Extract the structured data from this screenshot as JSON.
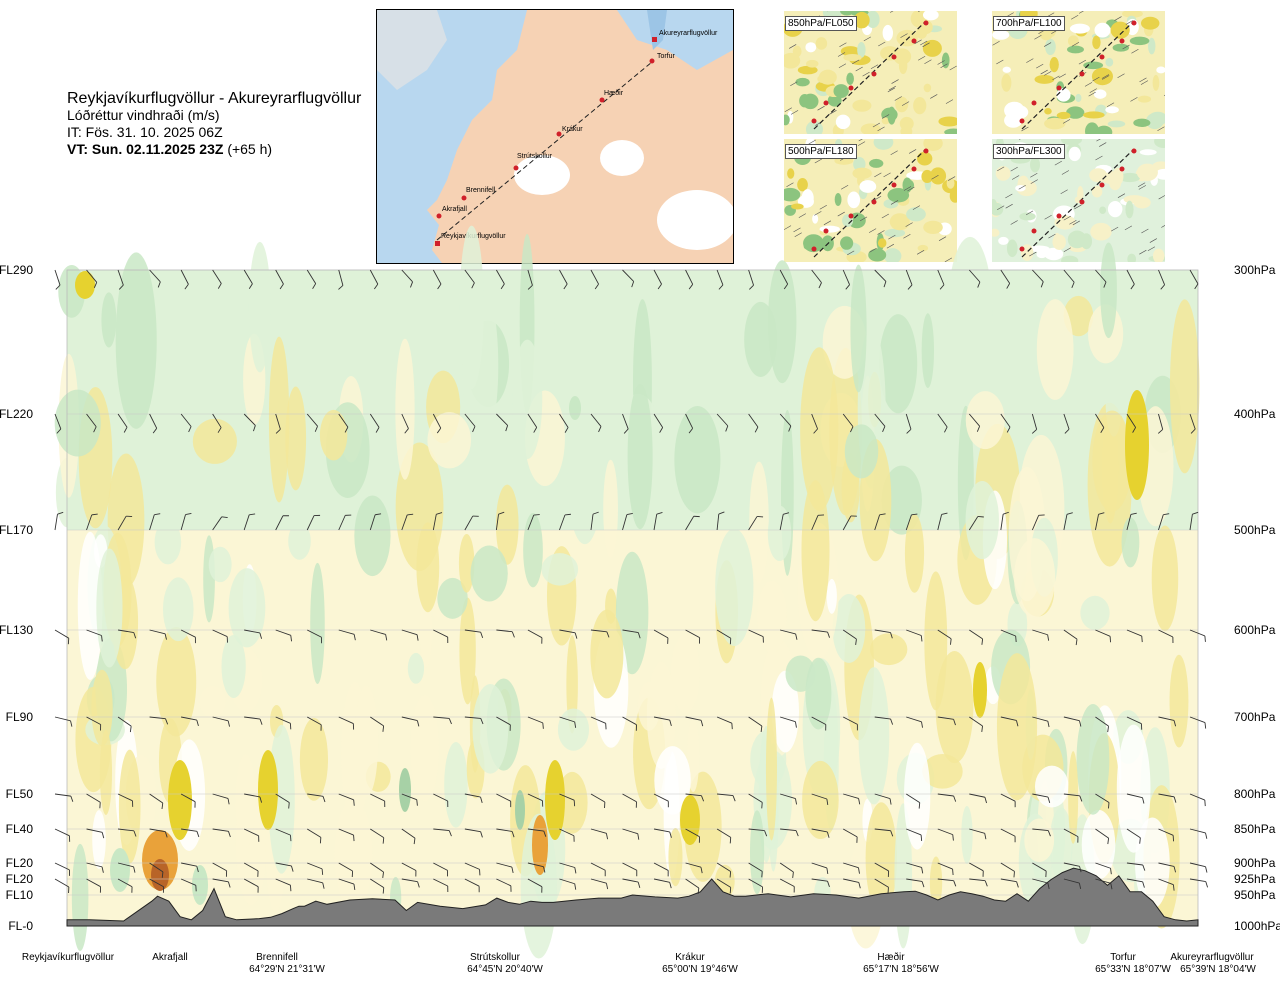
{
  "title": {
    "route": "Reykjavíkurflugvöllur - Akureyrarflugvöllur",
    "quantity": "Lóðréttur vindhraði (m/s)",
    "it": "IT: Fös. 31. 10. 2025 06Z",
    "vt_bold": "VT: Sun. 02.11.2025 23Z",
    "vt_lead": "(+65 h)"
  },
  "map": {
    "waypoints": [
      "Akureyrarflugvöllur",
      "Torfur",
      "Hæðir",
      "Krákur",
      "Strútskollur",
      "Brennifell",
      "Akrafjall",
      "Reykjavíkurflugvöllur"
    ]
  },
  "panels": [
    {
      "label": "850hPa/FL050"
    },
    {
      "label": "700hPa/FL100"
    },
    {
      "label": "500hPa/FL180"
    },
    {
      "label": "300hPa/FL300"
    }
  ],
  "colors": {
    "up_strong": "#e6d22f",
    "up_mid": "#f3e79a",
    "up_weak": "#fbf6d5",
    "neutral": "#ffffff",
    "down_weak": "#dff2d8",
    "down_mid": "#c9e8c5",
    "down_strong": "#a7d1a6",
    "orange": "#e9a23a",
    "brown": "#b86428",
    "terrain": "#7a7a7a"
  },
  "chart_data": {
    "type": "heatmap",
    "title": "Lóðréttur vindhraði (m/s)",
    "levels_left": [
      "FL290",
      "FL220",
      "FL170",
      "FL130",
      "FL90",
      "FL50",
      "FL40",
      "FL20",
      "FL20",
      "FL10",
      "FL-0"
    ],
    "levels_right": [
      "300hPa",
      "400hPa",
      "500hPa",
      "600hPa",
      "700hPa",
      "800hPa",
      "850hPa",
      "900hPa",
      "925hPa",
      "950hPa",
      "1000hPa"
    ],
    "pressure_hPa": [
      300,
      400,
      500,
      600,
      700,
      800,
      850,
      900,
      925,
      950,
      1000
    ],
    "x_locations": [
      {
        "name": "Reykjavíkurflugvöllur",
        "coord": ""
      },
      {
        "name": "Akrafjall",
        "coord": ""
      },
      {
        "name": "Brennifell",
        "coord": "64°29'N 21°31'W"
      },
      {
        "name": "Strútskollur",
        "coord": "64°45'N 20°40'W"
      },
      {
        "name": "Krákur",
        "coord": "65°00'N 19°46'W"
      },
      {
        "name": "Hæðir",
        "coord": "65°17'N 18°56'W"
      },
      {
        "name": "Torfur",
        "coord": "65°33'N 18°07'W"
      },
      {
        "name": "Akureyrarflugvöllur",
        "coord": "65°39'N 18°04'W"
      }
    ],
    "x_range": [
      0,
      1
    ],
    "terrain_profile": {
      "x": [
        0,
        0.02,
        0.05,
        0.075,
        0.08,
        0.09,
        0.1,
        0.11,
        0.12,
        0.13,
        0.14,
        0.15,
        0.17,
        0.18,
        0.19,
        0.2,
        0.205,
        0.21,
        0.22,
        0.23,
        0.25,
        0.27,
        0.29,
        0.3,
        0.31,
        0.33,
        0.35,
        0.37,
        0.38,
        0.39,
        0.4,
        0.41,
        0.42,
        0.43,
        0.45,
        0.47,
        0.49,
        0.5,
        0.52,
        0.54,
        0.55,
        0.56,
        0.57,
        0.58,
        0.59,
        0.6,
        0.62,
        0.64,
        0.66,
        0.68,
        0.7,
        0.72,
        0.74,
        0.75,
        0.76,
        0.77,
        0.78,
        0.79,
        0.8,
        0.81,
        0.82,
        0.83,
        0.84,
        0.85,
        0.86,
        0.87,
        0.88,
        0.89,
        0.9,
        0.91,
        0.92,
        0.93,
        0.94,
        0.95,
        0.96,
        0.97,
        0.98,
        0.99,
        1
      ],
      "y_hPa": [
        990,
        990,
        992,
        960,
        952,
        960,
        985,
        990,
        975,
        940,
        985,
        990,
        988,
        986,
        980,
        972,
        968,
        968,
        960,
        965,
        958,
        956,
        958,
        975,
        962,
        968,
        972,
        966,
        955,
        962,
        965,
        960,
        962,
        962,
        958,
        955,
        955,
        950,
        953,
        955,
        952,
        945,
        925,
        945,
        952,
        952,
        948,
        953,
        948,
        950,
        955,
        948,
        945,
        944,
        950,
        958,
        950,
        945,
        948,
        952,
        958,
        960,
        948,
        960,
        940,
        926,
        915,
        908,
        912,
        920,
        935,
        920,
        945,
        945,
        960,
        985,
        990,
        992,
        990
      ],
      "note": "approximate pressure of terrain surface along route"
    },
    "wind_barb_levels": [
      "300hPa",
      "400hPa",
      "500hPa",
      "600hPa",
      "700hPa",
      "800hPa",
      "850hPa",
      "900hPa",
      "925hPa"
    ],
    "legend": "none"
  }
}
